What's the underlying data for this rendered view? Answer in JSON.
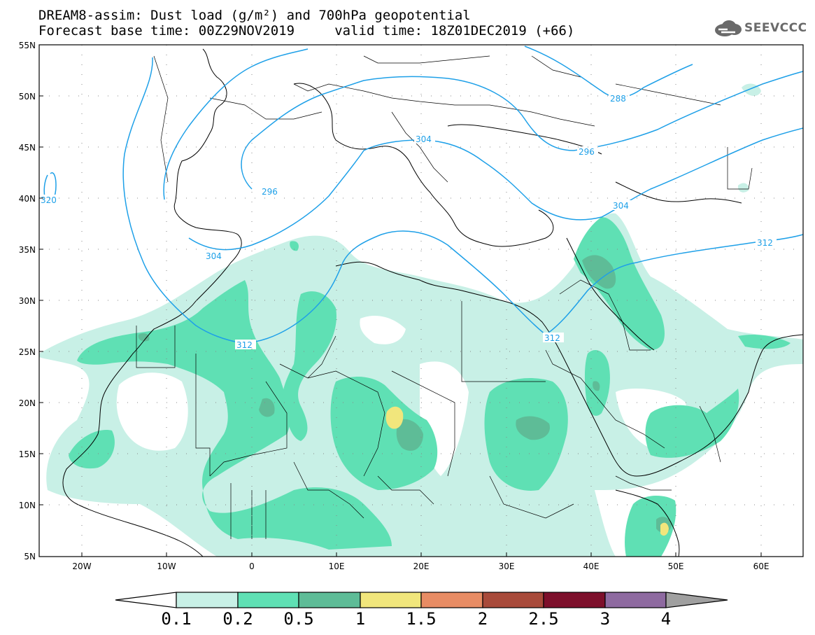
{
  "header": {
    "title_line1": "DREAM8-assim: Dust load (g/m²) and 700hPa geopotential",
    "title_line2": "Forecast base time: 00Z29NOV2019     valid time: 18Z01DEC2019 (+66)"
  },
  "logo": {
    "text": "SEEVCCC",
    "icon": "cloud-icon"
  },
  "map": {
    "lat_labels": [
      "55N",
      "50N",
      "45N",
      "40N",
      "35N",
      "30N",
      "25N",
      "20N",
      "15N",
      "10N",
      "5N"
    ],
    "lon_labels": [
      "20W",
      "10W",
      "0",
      "10E",
      "20E",
      "30E",
      "40E",
      "50E",
      "60E"
    ],
    "contour_labels": [
      {
        "value": "320"
      },
      {
        "value": "296"
      },
      {
        "value": "304"
      },
      {
        "value": "304"
      },
      {
        "value": "312"
      },
      {
        "value": "288"
      },
      {
        "value": "296"
      },
      {
        "value": "304"
      },
      {
        "value": "312"
      },
      {
        "value": "312"
      }
    ]
  },
  "colorbar": {
    "labels": [
      "0.1",
      "0.2",
      "0.5",
      "1",
      "1.5",
      "2",
      "2.5",
      "3",
      "4"
    ],
    "colors": [
      "#c8f0e6",
      "#5fe0b4",
      "#5ebc97",
      "#f1e67c",
      "#e88c64",
      "#a84a3a",
      "#7d0f2b",
      "#8e6aa0"
    ],
    "under_color": "#ffffff",
    "over_color": "#a0a0a0"
  }
}
